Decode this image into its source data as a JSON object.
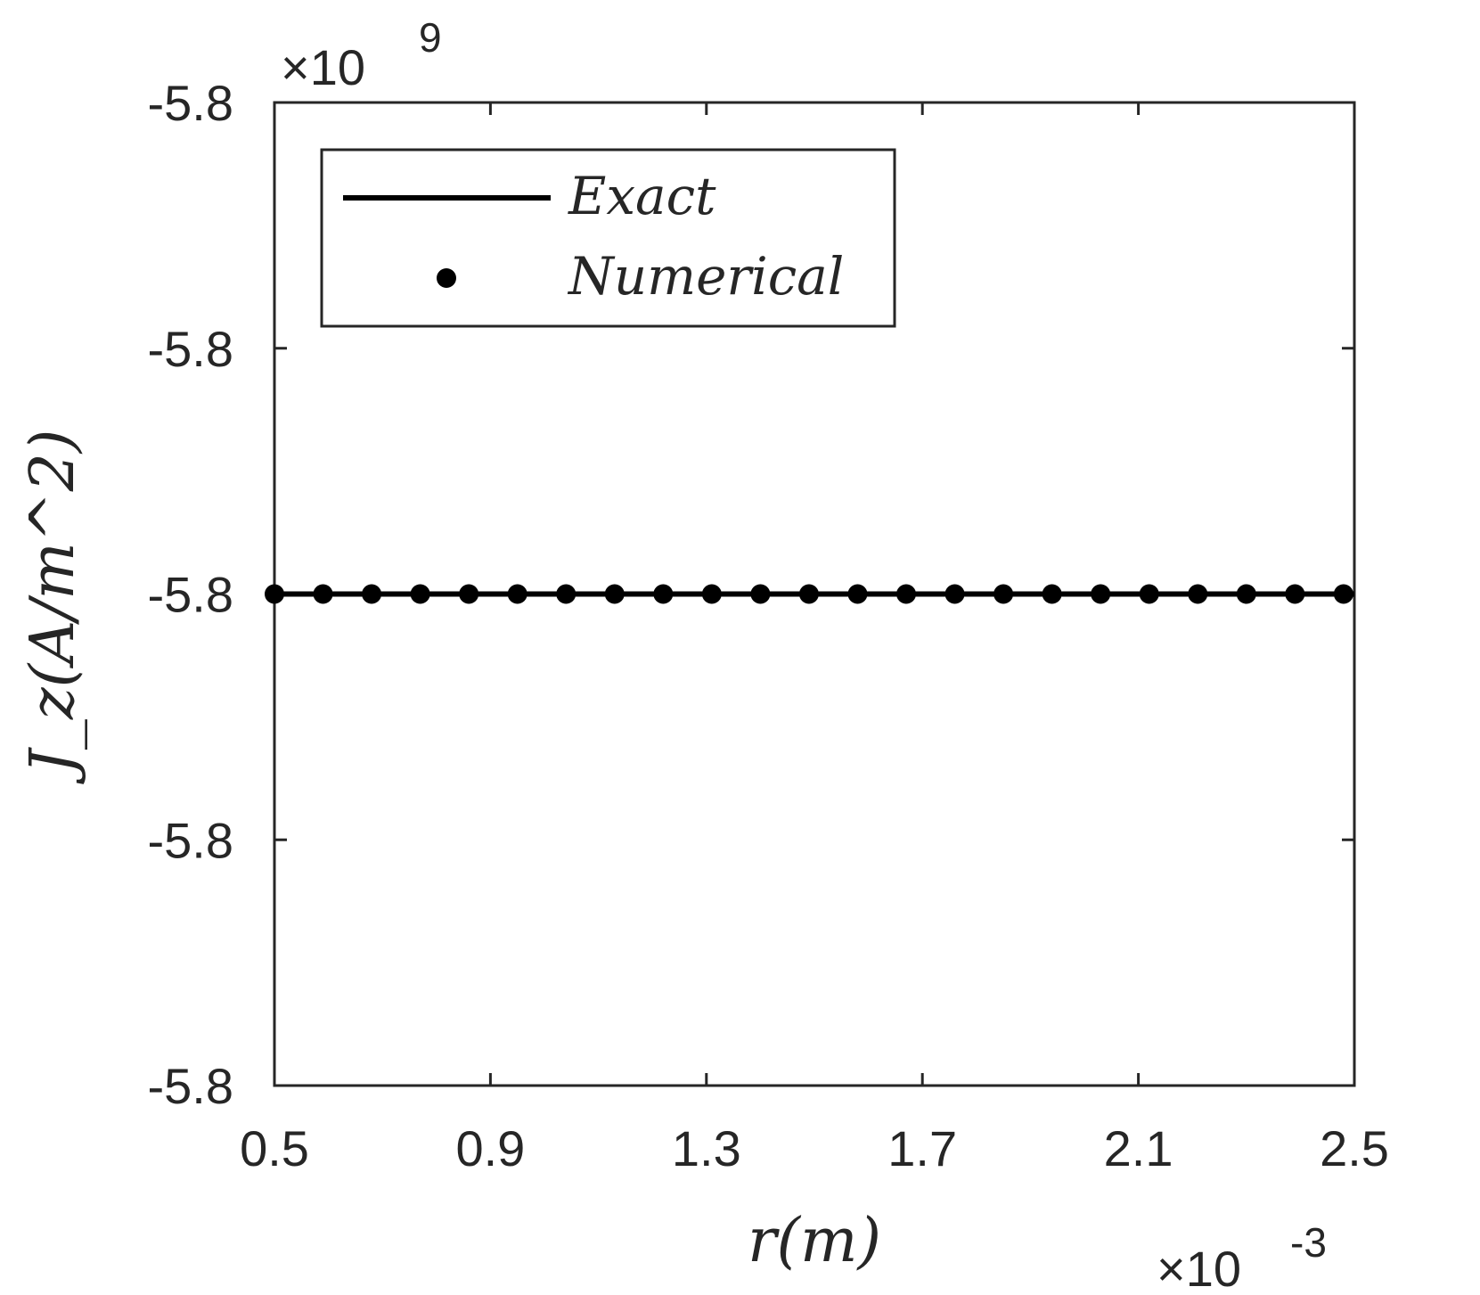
{
  "chart_data": {
    "type": "line",
    "title": "",
    "xlabel": "r(m)",
    "ylabel": "J_z(A/m^2)",
    "xlim": [
      0.5,
      2.5
    ],
    "x_exponent_label": "×10",
    "x_exponent": "-3",
    "y_exponent_label": "×10",
    "y_exponent": "9",
    "xticks": [
      "0.5",
      "0.9",
      "1.3",
      "1.7",
      "2.1",
      "2.5"
    ],
    "yticks": [
      "-5.8",
      "-5.8",
      "-5.8",
      "-5.8",
      "-5.8"
    ],
    "legend_position": "top-left",
    "grid": false,
    "series": [
      {
        "name": "Exact",
        "style": "line",
        "color": "#000000",
        "x": [
          0.5,
          2.5
        ],
        "y": [
          -5.8,
          -5.8
        ]
      },
      {
        "name": "Numerical",
        "style": "markers",
        "color": "#000000",
        "x": [
          0.5,
          0.59,
          0.68,
          0.77,
          0.86,
          0.95,
          1.04,
          1.13,
          1.22,
          1.31,
          1.4,
          1.49,
          1.58,
          1.67,
          1.76,
          1.85,
          1.94,
          2.03,
          2.12,
          2.21,
          2.3,
          2.39,
          2.48
        ],
        "y": [
          -5.8,
          -5.8,
          -5.8,
          -5.8,
          -5.8,
          -5.8,
          -5.8,
          -5.8,
          -5.8,
          -5.8,
          -5.8,
          -5.8,
          -5.8,
          -5.8,
          -5.8,
          -5.8,
          -5.8,
          -5.8,
          -5.8,
          -5.8,
          -5.8,
          -5.8,
          -5.8
        ]
      }
    ]
  }
}
